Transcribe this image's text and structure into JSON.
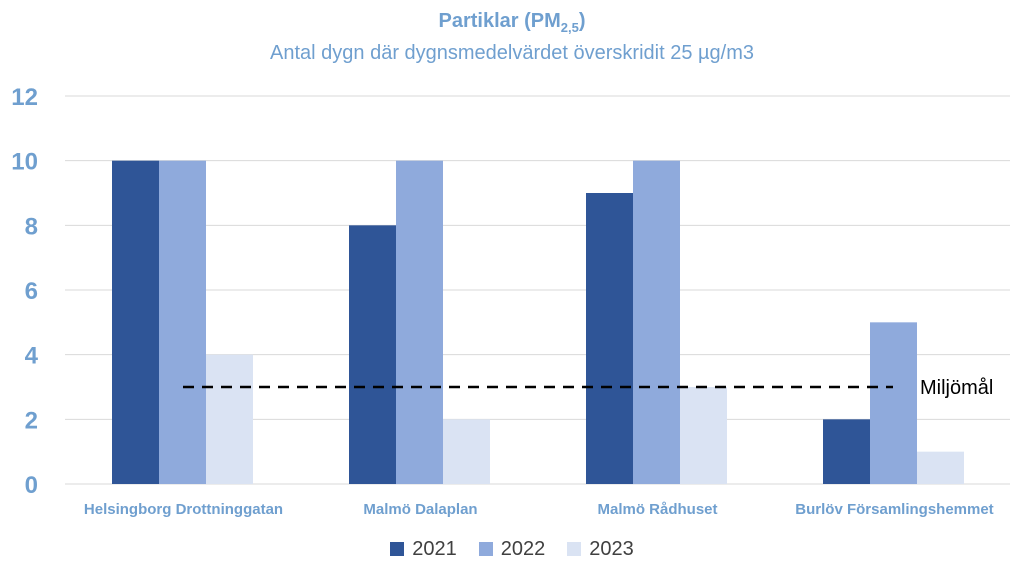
{
  "chart_data": {
    "type": "bar",
    "title_main": "Partiklar (PM",
    "title_sub": "2,5",
    "title_close": ")",
    "subtitle": "Antal dygn där dygnsmedelvärdet överskridit 25 µg/m3",
    "categories": [
      "Helsingborg Drottninggatan",
      "Malmö Dalaplan",
      "Malmö Rådhuset",
      "Burlöv Församlingshemmet"
    ],
    "series": [
      {
        "name": "2021",
        "color": "#2f5597",
        "values": [
          10,
          8,
          9,
          2
        ]
      },
      {
        "name": "2022",
        "color": "#8faadc",
        "values": [
          10,
          10,
          10,
          5
        ]
      },
      {
        "name": "2023",
        "color": "#dae3f3",
        "values": [
          4,
          2,
          3,
          1
        ]
      }
    ],
    "ylim": [
      0,
      12
    ],
    "yticks": [
      "0",
      "2",
      "4",
      "6",
      "8",
      "10",
      "12"
    ],
    "grid": true,
    "legend_position": "bottom",
    "reference_line": {
      "label": "Miljömål",
      "value": 3,
      "style": "dashed",
      "color": "#000000"
    },
    "colors": {
      "title": "#6f9fcf",
      "axis_labels": "#6f9fcf",
      "grid": "#d9d9d9"
    }
  }
}
